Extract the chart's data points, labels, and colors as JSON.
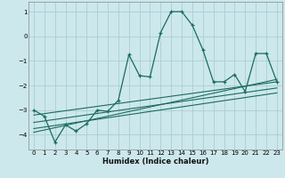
{
  "xlabel": "Humidex (Indice chaleur)",
  "bg_color": "#cce8ec",
  "grid_color": "#aacdd4",
  "line_color": "#1a6b60",
  "xlim": [
    -0.5,
    23.5
  ],
  "ylim": [
    -4.6,
    1.4
  ],
  "xticks": [
    0,
    1,
    2,
    3,
    4,
    5,
    6,
    7,
    8,
    9,
    10,
    11,
    12,
    13,
    14,
    15,
    16,
    17,
    18,
    19,
    20,
    21,
    22,
    23
  ],
  "yticks": [
    -4,
    -3,
    -2,
    -1,
    0,
    1
  ],
  "main_x": [
    0,
    1,
    2,
    3,
    4,
    5,
    6,
    7,
    8,
    9,
    10,
    11,
    12,
    13,
    14,
    15,
    16,
    17,
    18,
    19,
    20,
    21,
    22,
    23
  ],
  "main_y": [
    -3.0,
    -3.25,
    -4.3,
    -3.6,
    -3.85,
    -3.55,
    -3.0,
    -3.05,
    -2.6,
    -0.75,
    -1.6,
    -1.65,
    0.15,
    1.0,
    1.0,
    0.45,
    -0.55,
    -1.85,
    -1.85,
    -1.55,
    -2.25,
    -0.7,
    -0.7,
    -1.85
  ],
  "line1_x": [
    0,
    23
  ],
  "line1_y": [
    -3.2,
    -1.85
  ],
  "line2_x": [
    0,
    23
  ],
  "line2_y": [
    -3.5,
    -2.1
  ],
  "line3_x": [
    0,
    23
  ],
  "line3_y": [
    -3.75,
    -2.3
  ],
  "line4_x": [
    0,
    23
  ],
  "line4_y": [
    -3.9,
    -1.75
  ]
}
